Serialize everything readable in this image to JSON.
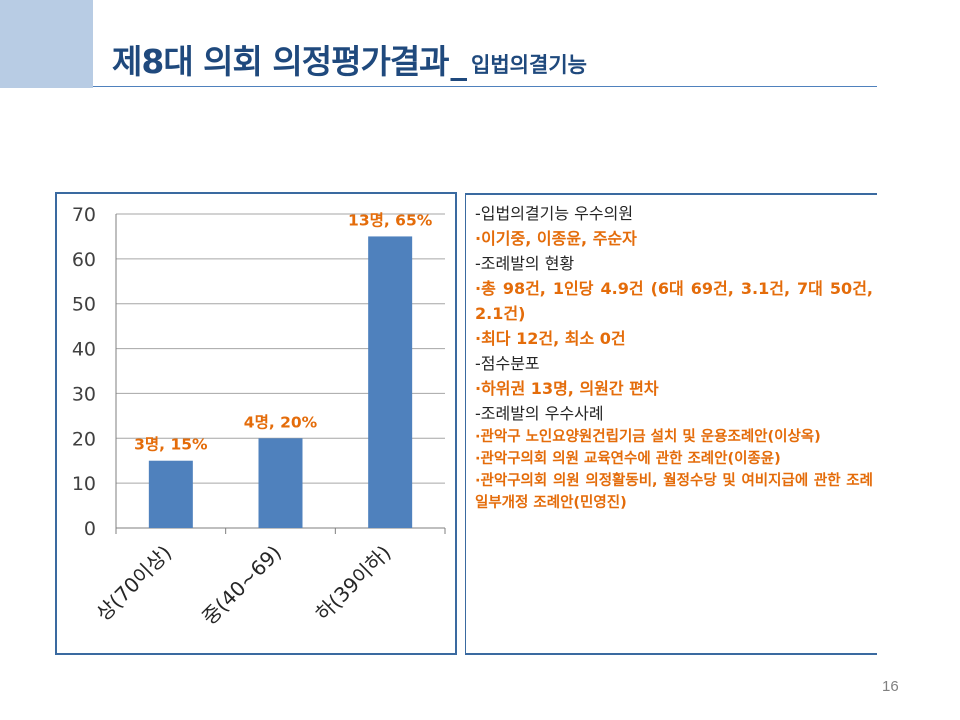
{
  "slide": {
    "title_main": "제8대 의회 의정평가결과",
    "title_separator": "_",
    "title_sub": "입법의결기능",
    "page_number": "16"
  },
  "chart_data": {
    "type": "bar",
    "categories": [
      "상(70이상)",
      "중(40~69)",
      "하(39이하)"
    ],
    "values": [
      15,
      20,
      65
    ],
    "data_labels": [
      "3명, 15%",
      "4명, 20%",
      "13명, 65%"
    ],
    "ylim": [
      0,
      70
    ],
    "y_ticks": [
      0,
      10,
      20,
      30,
      40,
      50,
      60,
      70
    ],
    "grid": true,
    "bar_color": "#4f81bd",
    "label_color": "#e46c0a",
    "xlabel": "",
    "ylabel": "",
    "title": ""
  },
  "text_panel": {
    "lines": [
      {
        "kind": "head",
        "text": "-입법의결기능 우수의원"
      },
      {
        "kind": "item",
        "text": " ·이기중, 이종윤, 주순자"
      },
      {
        "kind": "head",
        "text": "-조례발의 현황"
      },
      {
        "kind": "item",
        "text": " ·총 98건, 1인당 4.9건 (6대 69건, 3.1건, 7대 50건, 2.1건)"
      },
      {
        "kind": "item",
        "text": " ·최다 12건, 최소 0건"
      },
      {
        "kind": "head",
        "text": "-점수분포"
      },
      {
        "kind": "item",
        "text": " ·하위권 13명, 의원간 편차"
      },
      {
        "kind": "head",
        "text": "-조례발의 우수사례"
      },
      {
        "kind": "item small",
        "text": " ·관악구 노인요양원건립기금 설치 및 운용조례안(이상옥)"
      },
      {
        "kind": "item small",
        "text": " ·관악구의회 의원 교육연수에 관한 조례안(이종윤)"
      },
      {
        "kind": "item small",
        "text": " ·관악구의회 의원 의정활동비, 월정수당 및 여비지급에 관한 조례 일부개정 조례안(민영진)"
      }
    ]
  },
  "colors": {
    "accent": "#1f497d",
    "frame": "#3a6aa0",
    "highlight": "#e46c0a",
    "corner": "#b8cce4"
  }
}
